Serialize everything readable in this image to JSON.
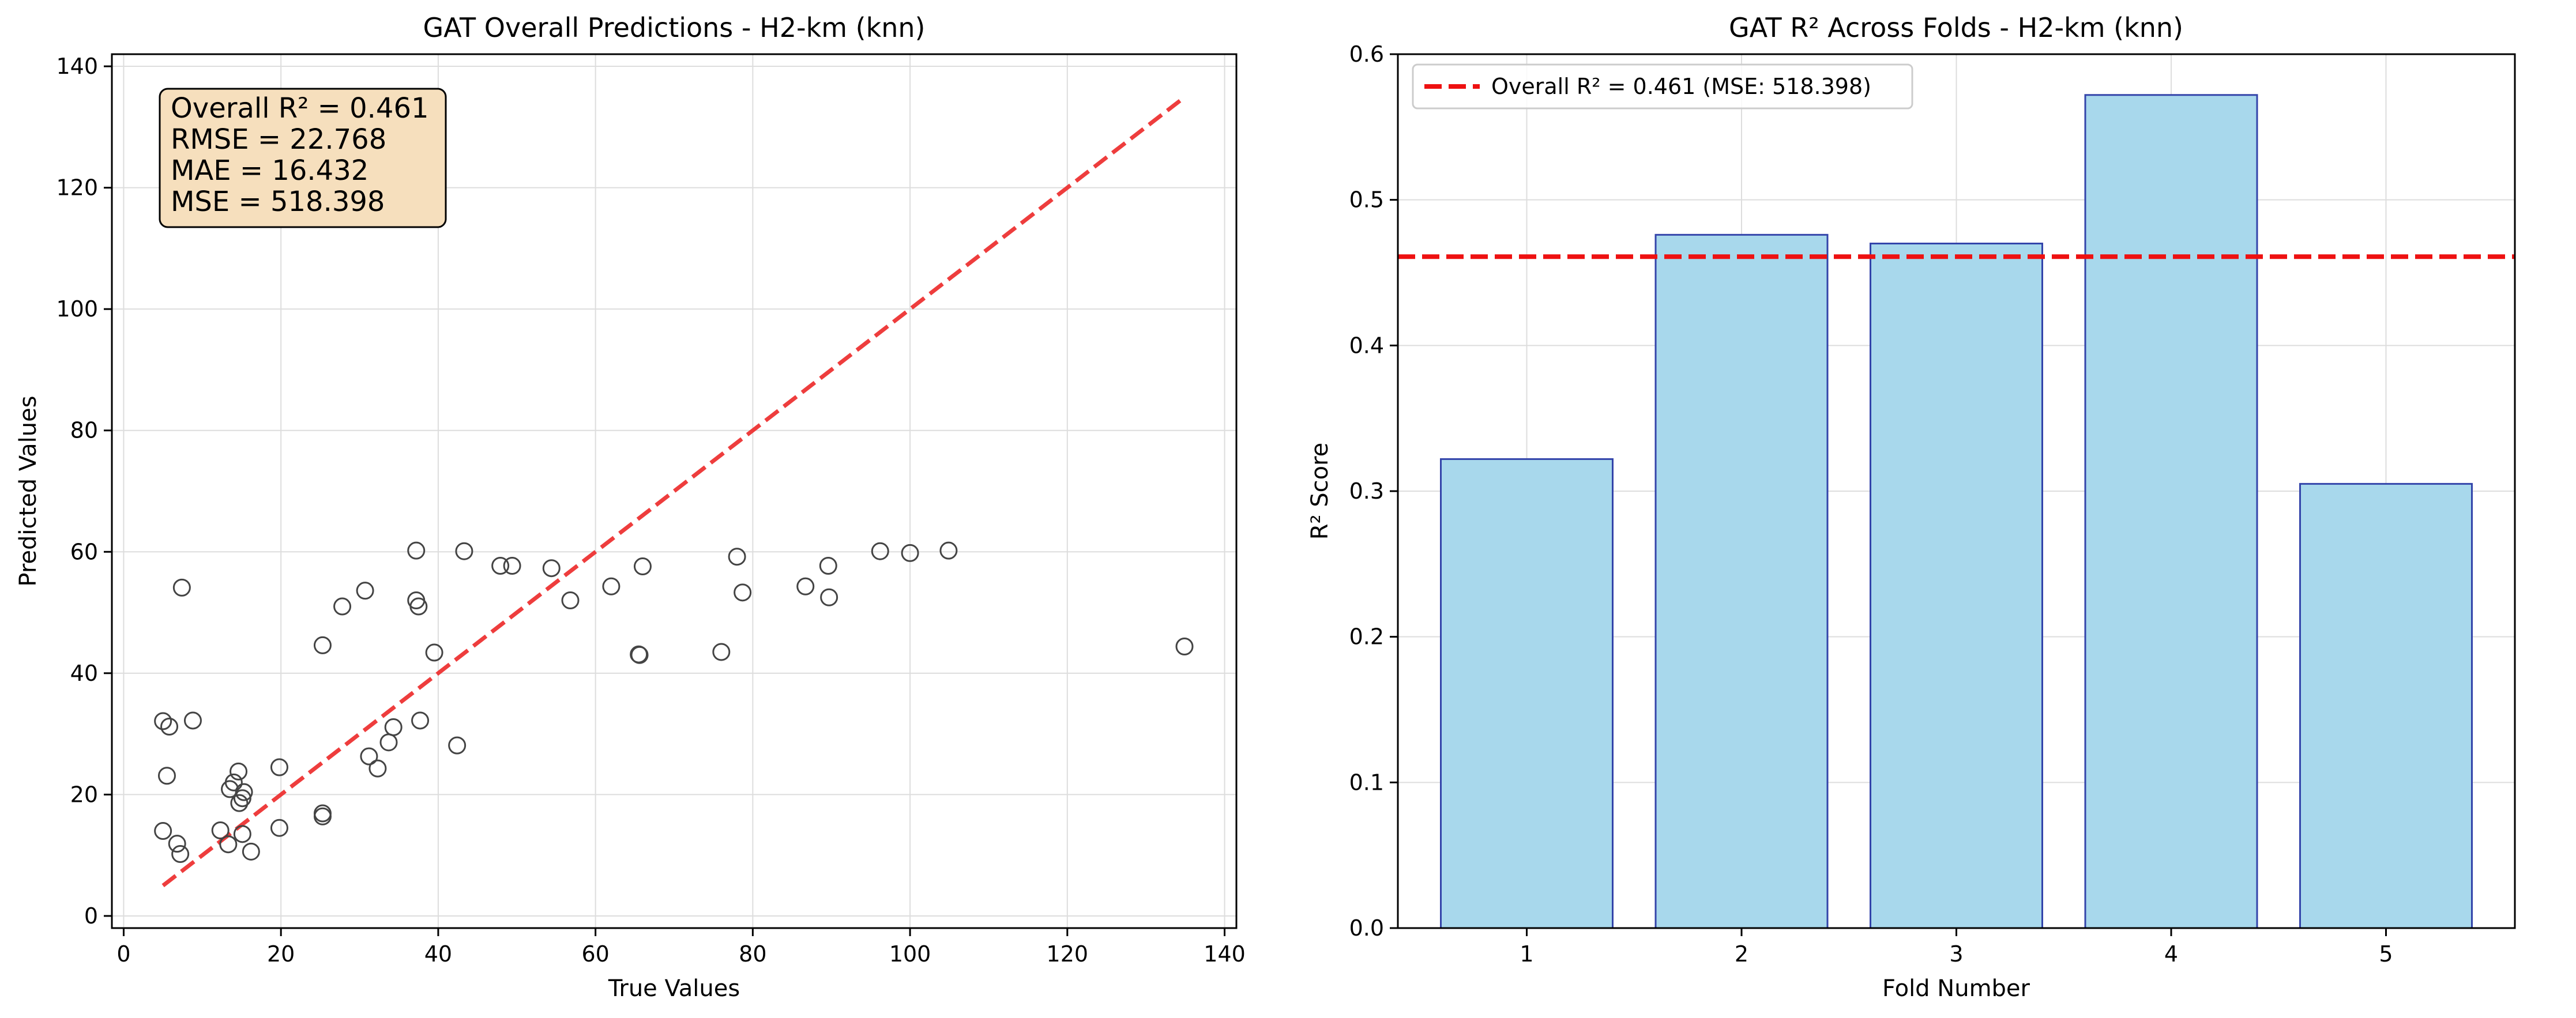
{
  "chart_data": [
    {
      "type": "scatter",
      "title": "GAT Overall Predictions - H2-km (knn)",
      "xlabel": "True Values",
      "ylabel": "Predicted Values",
      "xlim": [
        -1.5,
        141.5
      ],
      "ylim": [
        -2,
        142
      ],
      "xticks": [
        0,
        20,
        40,
        60,
        80,
        100,
        120,
        140
      ],
      "yticks": [
        0,
        20,
        40,
        60,
        80,
        100,
        120,
        140
      ],
      "grid": true,
      "stats_box": {
        "placement": "top-left",
        "lines": [
          "Overall R² = 0.461",
          "RMSE = 22.768",
          "MAE = 16.432",
          "MSE = 518.398"
        ]
      },
      "reference_line": {
        "style": "dashed",
        "color": "#ee3333",
        "from": [
          5,
          5
        ],
        "to": [
          135,
          135
        ]
      },
      "marker_color": "#444444",
      "points": [
        {
          "x": 5.0,
          "y": 32.1
        },
        {
          "x": 5.0,
          "y": 14.0
        },
        {
          "x": 5.5,
          "y": 23.1
        },
        {
          "x": 5.8,
          "y": 31.2
        },
        {
          "x": 6.8,
          "y": 11.9
        },
        {
          "x": 7.2,
          "y": 10.2
        },
        {
          "x": 7.4,
          "y": 54.1
        },
        {
          "x": 8.8,
          "y": 32.2
        },
        {
          "x": 12.3,
          "y": 14.1
        },
        {
          "x": 13.3,
          "y": 11.8
        },
        {
          "x": 13.5,
          "y": 20.9
        },
        {
          "x": 14.0,
          "y": 22.0
        },
        {
          "x": 14.6,
          "y": 23.8
        },
        {
          "x": 14.7,
          "y": 18.6
        },
        {
          "x": 15.1,
          "y": 19.4
        },
        {
          "x": 15.3,
          "y": 20.4
        },
        {
          "x": 15.1,
          "y": 13.5
        },
        {
          "x": 16.2,
          "y": 10.6
        },
        {
          "x": 19.8,
          "y": 24.5
        },
        {
          "x": 19.8,
          "y": 14.5
        },
        {
          "x": 25.3,
          "y": 16.9
        },
        {
          "x": 25.3,
          "y": 16.4
        },
        {
          "x": 25.3,
          "y": 44.6
        },
        {
          "x": 27.8,
          "y": 51.0
        },
        {
          "x": 30.7,
          "y": 53.6
        },
        {
          "x": 31.2,
          "y": 26.3
        },
        {
          "x": 32.3,
          "y": 24.3
        },
        {
          "x": 33.7,
          "y": 28.6
        },
        {
          "x": 34.3,
          "y": 31.1
        },
        {
          "x": 37.2,
          "y": 60.2
        },
        {
          "x": 37.2,
          "y": 52.0
        },
        {
          "x": 37.5,
          "y": 51.0
        },
        {
          "x": 37.7,
          "y": 32.2
        },
        {
          "x": 39.5,
          "y": 43.4
        },
        {
          "x": 42.4,
          "y": 28.1
        },
        {
          "x": 43.3,
          "y": 60.1
        },
        {
          "x": 47.9,
          "y": 57.7
        },
        {
          "x": 49.4,
          "y": 57.7
        },
        {
          "x": 54.4,
          "y": 57.3
        },
        {
          "x": 56.8,
          "y": 52.0
        },
        {
          "x": 62.0,
          "y": 54.3
        },
        {
          "x": 65.5,
          "y": 43.1
        },
        {
          "x": 65.6,
          "y": 43.0
        },
        {
          "x": 66.0,
          "y": 57.6
        },
        {
          "x": 76.0,
          "y": 43.5
        },
        {
          "x": 78.0,
          "y": 59.2
        },
        {
          "x": 78.7,
          "y": 53.3
        },
        {
          "x": 86.7,
          "y": 54.3
        },
        {
          "x": 89.6,
          "y": 57.7
        },
        {
          "x": 89.7,
          "y": 52.5
        },
        {
          "x": 96.2,
          "y": 60.1
        },
        {
          "x": 100.0,
          "y": 59.8
        },
        {
          "x": 104.9,
          "y": 60.2
        },
        {
          "x": 134.9,
          "y": 44.4
        }
      ]
    },
    {
      "type": "bar",
      "title": "GAT R² Across Folds - H2-km (knn)",
      "xlabel": "Fold Number",
      "ylabel": "R² Score",
      "categories": [
        "1",
        "2",
        "3",
        "4",
        "5"
      ],
      "values": [
        0.322,
        0.476,
        0.47,
        0.572,
        0.305
      ],
      "ylim": [
        0,
        0.6
      ],
      "yticks": [
        "0.0",
        "0.1",
        "0.2",
        "0.3",
        "0.4",
        "0.5",
        "0.6"
      ],
      "grid": true,
      "bar_color": "#a8d8ec",
      "bar_edge_color": "#3344aa",
      "reference_line": {
        "value": 0.461,
        "style": "dashed",
        "color": "#ee1111"
      },
      "legend": {
        "placement": "top-left",
        "entries": [
          "Overall R² = 0.461 (MSE: 518.398)"
        ]
      }
    }
  ]
}
